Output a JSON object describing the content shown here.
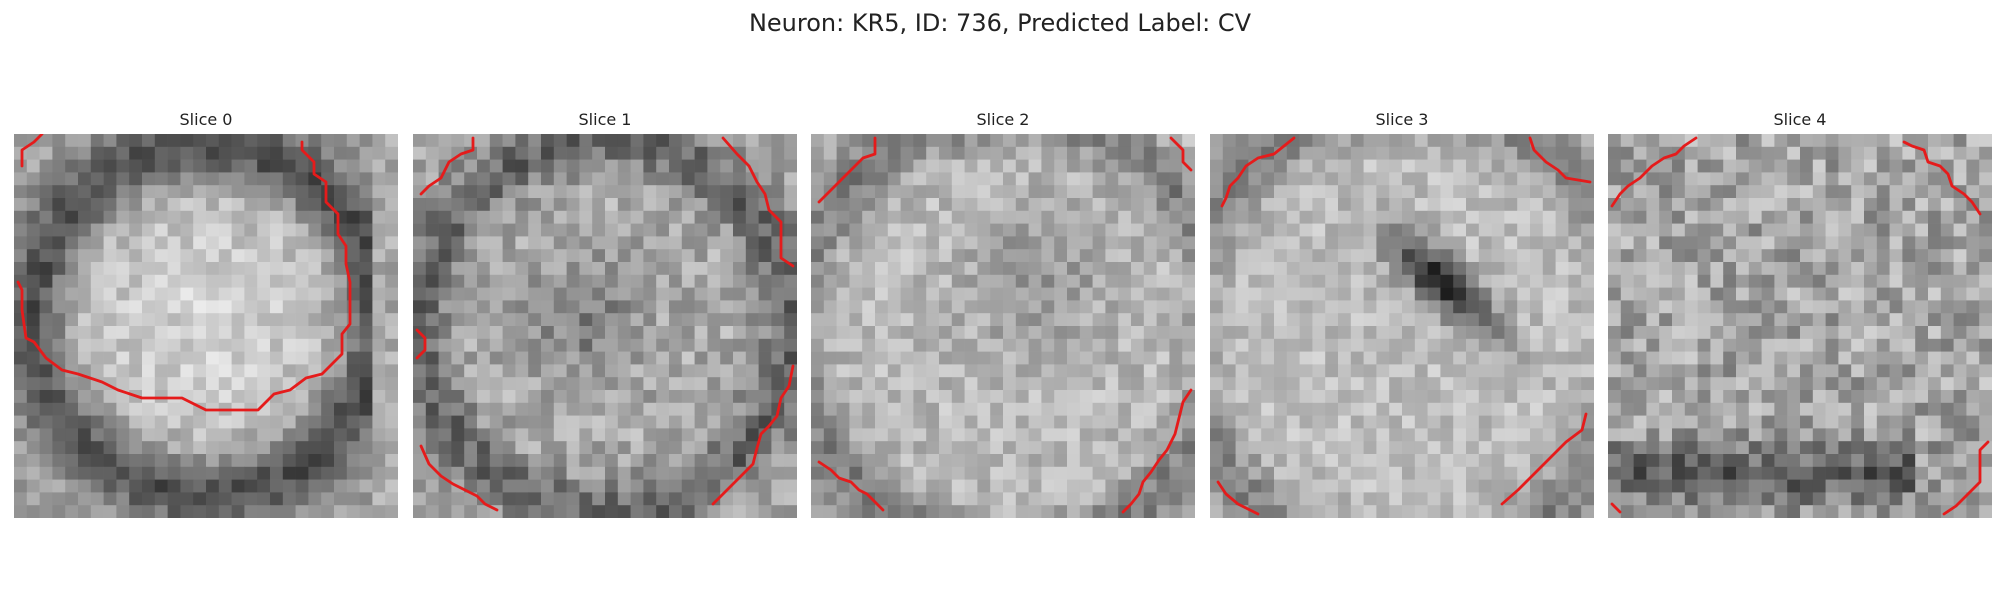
{
  "figure": {
    "title": "Neuron: KR5, ID: 736, Predicted Label: CV"
  },
  "slices": [
    {
      "title": "Slice 0",
      "pattern": "bright-cell-dark-ring",
      "seed": 11
    },
    {
      "title": "Slice 1",
      "pattern": "medium-cell-dark-center",
      "seed": 23
    },
    {
      "title": "Slice 2",
      "pattern": "light-textured-gray-center",
      "seed": 37
    },
    {
      "title": "Slice 3",
      "pattern": "light-with-dark-diagonal-blob",
      "seed": 53
    },
    {
      "title": "Slice 4",
      "pattern": "noisy-dark-bottom-band",
      "seed": 71
    }
  ],
  "colors": {
    "contour": "#e51b1b",
    "text": "#222222"
  }
}
